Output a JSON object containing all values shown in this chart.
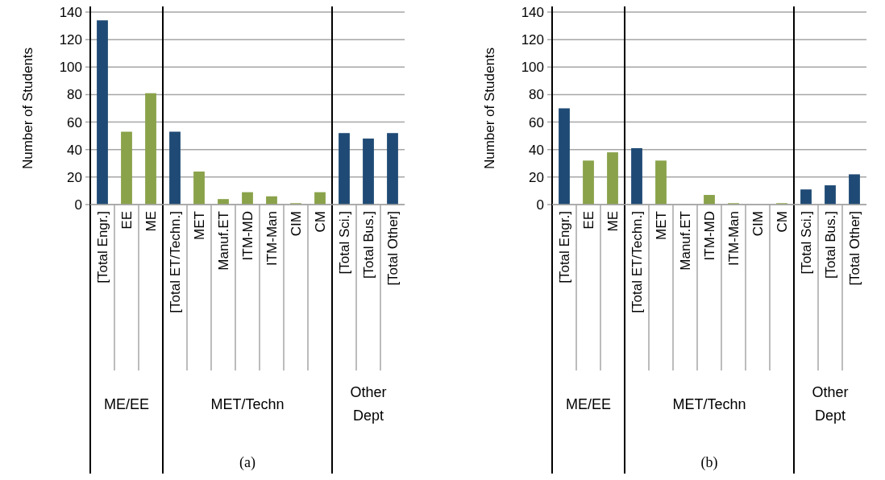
{
  "chart_data": [
    {
      "type": "bar",
      "title": "(a)",
      "ylabel": "Number of Students",
      "categories": [
        "[Total Engr.]",
        "EE",
        "ME",
        "[Total ET/Techn.]",
        "MET",
        "Manuf.ET",
        "ITM-MD",
        "ITM-Man",
        "CIM",
        "CM",
        "[Total Sci.]",
        "[Total Bus.]",
        "[Total Other]"
      ],
      "values": [
        134,
        53,
        81,
        53,
        24,
        4,
        9,
        6,
        1,
        9,
        52,
        48,
        52
      ],
      "colors": [
        "#1f4a75",
        "#8aa24a",
        "#8aa24a",
        "#1f4a75",
        "#8aa24a",
        "#8aa24a",
        "#8aa24a",
        "#8aa24a",
        "#8aa24a",
        "#8aa24a",
        "#1f4a75",
        "#1f4a75",
        "#1f4a75"
      ],
      "ylim": [
        0,
        140
      ],
      "yticks": [
        0,
        20,
        40,
        60,
        80,
        100,
        120,
        140
      ],
      "grid": "y",
      "annotations": [
        "ME/EE",
        "MET/Techn",
        "Other Dept"
      ]
    },
    {
      "type": "bar",
      "title": "(b)",
      "ylabel": "Number of Students",
      "categories": [
        "[Total Engr.]",
        "EE",
        "ME",
        "[Total ET/Techn.]",
        "MET",
        "Manuf.ET",
        "ITM-MD",
        "ITM-Man",
        "CIM",
        "CM",
        "[Total Sci.]",
        "[Total Bus.]",
        "[Total Other]"
      ],
      "values": [
        70,
        32,
        38,
        41,
        32,
        0,
        7,
        1,
        0,
        1,
        11,
        14,
        22
      ],
      "colors": [
        "#1f4a75",
        "#8aa24a",
        "#8aa24a",
        "#1f4a75",
        "#8aa24a",
        "#8aa24a",
        "#8aa24a",
        "#8aa24a",
        "#8aa24a",
        "#8aa24a",
        "#1f4a75",
        "#1f4a75",
        "#1f4a75"
      ],
      "ylim": [
        0,
        140
      ],
      "yticks": [
        0,
        20,
        40,
        60,
        80,
        100,
        120,
        140
      ],
      "grid": "y",
      "annotations": [
        "ME/EE",
        "MET/Techn",
        "Other Dept"
      ]
    }
  ]
}
